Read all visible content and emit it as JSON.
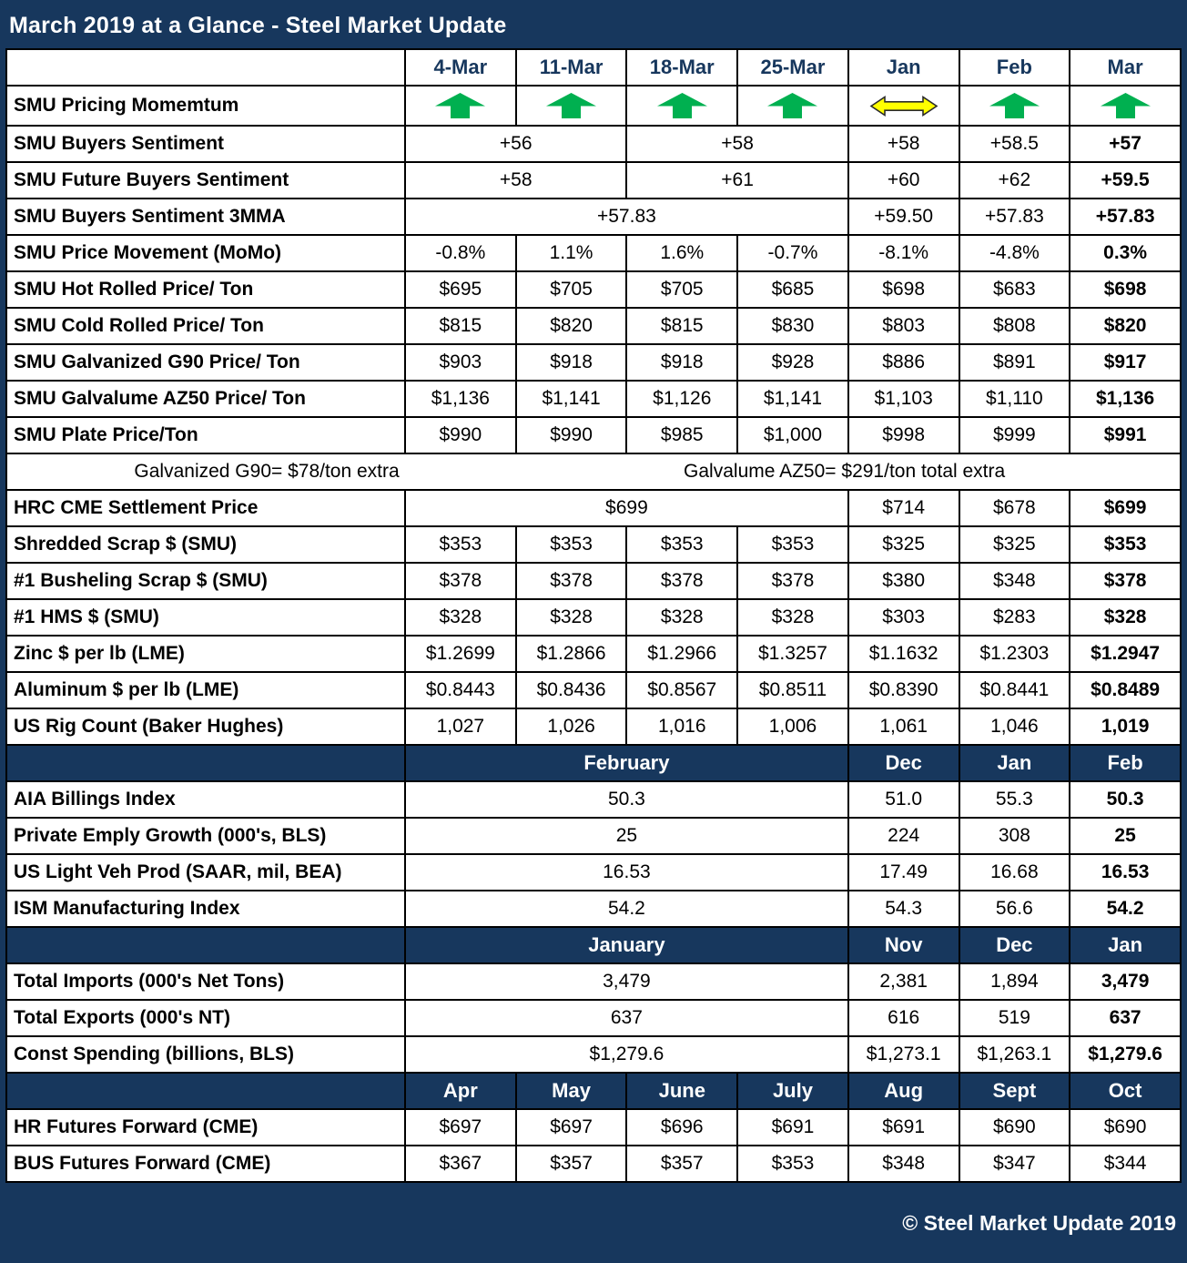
{
  "chart_data": {
    "type": "table",
    "title": "March 2019 at a Glance - Steel Market Update",
    "footer": "© Steel Market Update 2019",
    "colors": {
      "navy": "#17375D",
      "arrow_green": "#00B050",
      "arrow_yellow": "#FFFF00",
      "border_black": "#000000"
    },
    "icons": {
      "up-arrow": "green up block arrow (price momentum increasing)",
      "left-right-arrow": "yellow double-headed horizontal arrow (neutral momentum)"
    },
    "columns": [
      "",
      "4-Mar",
      "11-Mar",
      "18-Mar",
      "25-Mar",
      "Jan",
      "Feb",
      "Mar"
    ],
    "rows": [
      {
        "kind": "icons",
        "label": "SMU Pricing Momemtum",
        "cells": [
          {
            "icon": "up-arrow"
          },
          {
            "icon": "up-arrow"
          },
          {
            "icon": "up-arrow"
          },
          {
            "icon": "up-arrow"
          },
          {
            "icon": "left-right-arrow"
          },
          {
            "icon": "up-arrow"
          },
          {
            "icon": "up-arrow"
          }
        ]
      },
      {
        "kind": "data",
        "label": "SMU Buyers Sentiment",
        "cells": [
          {
            "text": "+56",
            "span": 2
          },
          {
            "text": "+58",
            "span": 2
          },
          {
            "text": "+58"
          },
          {
            "text": "+58.5"
          },
          {
            "text": "+57",
            "bold": true
          }
        ]
      },
      {
        "kind": "data",
        "label": "SMU Future Buyers Sentiment",
        "cells": [
          {
            "text": "+58",
            "span": 2
          },
          {
            "text": "+61",
            "span": 2
          },
          {
            "text": "+60"
          },
          {
            "text": "+62"
          },
          {
            "text": "+59.5",
            "bold": true
          }
        ]
      },
      {
        "kind": "data",
        "label": "SMU Buyers Sentiment 3MMA",
        "cells": [
          {
            "text": "+57.83",
            "span": 4
          },
          {
            "text": "+59.50"
          },
          {
            "text": "+57.83"
          },
          {
            "text": "+57.83",
            "bold": true
          }
        ]
      },
      {
        "kind": "data",
        "label": "SMU Price Movement (MoMo)",
        "cells": [
          {
            "text": "-0.8%"
          },
          {
            "text": "1.1%"
          },
          {
            "text": "1.6%"
          },
          {
            "text": "-0.7%"
          },
          {
            "text": "-8.1%"
          },
          {
            "text": "-4.8%"
          },
          {
            "text": "0.3%",
            "bold": true
          }
        ]
      },
      {
        "kind": "data",
        "label": "SMU Hot Rolled Price/ Ton",
        "cells": [
          {
            "text": "$695"
          },
          {
            "text": "$705"
          },
          {
            "text": "$705"
          },
          {
            "text": "$685"
          },
          {
            "text": "$698"
          },
          {
            "text": "$683"
          },
          {
            "text": "$698",
            "bold": true
          }
        ]
      },
      {
        "kind": "data",
        "label": "SMU Cold Rolled Price/ Ton",
        "cells": [
          {
            "text": "$815"
          },
          {
            "text": "$820"
          },
          {
            "text": "$815"
          },
          {
            "text": "$830"
          },
          {
            "text": "$803"
          },
          {
            "text": "$808"
          },
          {
            "text": "$820",
            "bold": true
          }
        ]
      },
      {
        "kind": "data",
        "label": "SMU Galvanized G90 Price/ Ton",
        "cells": [
          {
            "text": "$903"
          },
          {
            "text": "$918"
          },
          {
            "text": "$918"
          },
          {
            "text": "$928"
          },
          {
            "text": "$886"
          },
          {
            "text": "$891"
          },
          {
            "text": "$917",
            "bold": true
          }
        ]
      },
      {
        "kind": "data",
        "label": "SMU Galvalume AZ50 Price/ Ton",
        "cells": [
          {
            "text": "$1,136"
          },
          {
            "text": "$1,141"
          },
          {
            "text": "$1,126"
          },
          {
            "text": "$1,141"
          },
          {
            "text": "$1,103"
          },
          {
            "text": "$1,110"
          },
          {
            "text": "$1,136",
            "bold": true
          }
        ]
      },
      {
        "kind": "data",
        "label": "SMU Plate Price/Ton",
        "cells": [
          {
            "text": "$990"
          },
          {
            "text": "$990"
          },
          {
            "text": "$985"
          },
          {
            "text": "$1,000"
          },
          {
            "text": "$998"
          },
          {
            "text": "$999"
          },
          {
            "text": "$991",
            "bold": true
          }
        ]
      },
      {
        "kind": "note",
        "texts": [
          "Galvanized G90= $78/ton extra",
          "Galvalume AZ50= $291/ton total extra"
        ]
      },
      {
        "kind": "data",
        "label": "HRC CME Settlement Price",
        "cells": [
          {
            "text": "$699",
            "span": 4
          },
          {
            "text": "$714"
          },
          {
            "text": "$678"
          },
          {
            "text": "$699",
            "bold": true
          }
        ]
      },
      {
        "kind": "data",
        "label": "Shredded Scrap $ (SMU)",
        "cells": [
          {
            "text": "$353"
          },
          {
            "text": "$353"
          },
          {
            "text": "$353"
          },
          {
            "text": "$353"
          },
          {
            "text": "$325"
          },
          {
            "text": "$325"
          },
          {
            "text": "$353",
            "bold": true
          }
        ]
      },
      {
        "kind": "data",
        "label": "#1 Busheling Scrap $ (SMU)",
        "cells": [
          {
            "text": "$378"
          },
          {
            "text": "$378"
          },
          {
            "text": "$378"
          },
          {
            "text": "$378"
          },
          {
            "text": "$380"
          },
          {
            "text": "$348"
          },
          {
            "text": "$378",
            "bold": true
          }
        ]
      },
      {
        "kind": "data",
        "label": "#1 HMS $ (SMU)",
        "cells": [
          {
            "text": "$328"
          },
          {
            "text": "$328"
          },
          {
            "text": "$328"
          },
          {
            "text": "$328"
          },
          {
            "text": "$303"
          },
          {
            "text": "$283"
          },
          {
            "text": "$328",
            "bold": true
          }
        ]
      },
      {
        "kind": "data",
        "label": "Zinc $ per lb (LME)",
        "cells": [
          {
            "text": "$1.2699"
          },
          {
            "text": "$1.2866"
          },
          {
            "text": "$1.2966"
          },
          {
            "text": "$1.3257"
          },
          {
            "text": "$1.1632"
          },
          {
            "text": "$1.2303"
          },
          {
            "text": "$1.2947",
            "bold": true
          }
        ]
      },
      {
        "kind": "data",
        "label": "Aluminum $ per lb (LME)",
        "cells": [
          {
            "text": "$0.8443"
          },
          {
            "text": "$0.8436"
          },
          {
            "text": "$0.8567"
          },
          {
            "text": "$0.8511"
          },
          {
            "text": "$0.8390"
          },
          {
            "text": "$0.8441"
          },
          {
            "text": "$0.8489",
            "bold": true
          }
        ]
      },
      {
        "kind": "data",
        "label": "US Rig Count (Baker Hughes)",
        "cells": [
          {
            "text": "1,027"
          },
          {
            "text": "1,026"
          },
          {
            "text": "1,016"
          },
          {
            "text": "1,006"
          },
          {
            "text": "1,061"
          },
          {
            "text": "1,046"
          },
          {
            "text": "1,019",
            "bold": true
          }
        ]
      },
      {
        "kind": "subheader",
        "label": "",
        "cells": [
          {
            "text": "February",
            "span": 4
          },
          {
            "text": "Dec"
          },
          {
            "text": "Jan"
          },
          {
            "text": "Feb"
          }
        ]
      },
      {
        "kind": "data",
        "label": "AIA Billings Index",
        "cells": [
          {
            "text": "50.3",
            "span": 4
          },
          {
            "text": "51.0"
          },
          {
            "text": "55.3"
          },
          {
            "text": "50.3",
            "bold": true
          }
        ]
      },
      {
        "kind": "data",
        "label": "Private Emply Growth (000's, BLS)",
        "cells": [
          {
            "text": "25",
            "span": 4
          },
          {
            "text": "224"
          },
          {
            "text": "308"
          },
          {
            "text": "25",
            "bold": true
          }
        ]
      },
      {
        "kind": "data",
        "label": "US Light Veh Prod (SAAR, mil, BEA)",
        "cells": [
          {
            "text": "16.53",
            "span": 4
          },
          {
            "text": "17.49"
          },
          {
            "text": "16.68"
          },
          {
            "text": "16.53",
            "bold": true
          }
        ]
      },
      {
        "kind": "data",
        "label": "ISM Manufacturing Index",
        "cells": [
          {
            "text": "54.2",
            "span": 4
          },
          {
            "text": "54.3"
          },
          {
            "text": "56.6"
          },
          {
            "text": "54.2",
            "bold": true
          }
        ]
      },
      {
        "kind": "subheader",
        "label": "",
        "cells": [
          {
            "text": "January",
            "span": 4
          },
          {
            "text": "Nov"
          },
          {
            "text": "Dec"
          },
          {
            "text": "Jan"
          }
        ]
      },
      {
        "kind": "data",
        "label": "Total Imports (000's Net Tons)",
        "cells": [
          {
            "text": "3,479",
            "span": 4
          },
          {
            "text": "2,381"
          },
          {
            "text": "1,894"
          },
          {
            "text": "3,479",
            "bold": true
          }
        ]
      },
      {
        "kind": "data",
        "label": "Total Exports (000's NT)",
        "cells": [
          {
            "text": "637",
            "span": 4
          },
          {
            "text": "616"
          },
          {
            "text": "519"
          },
          {
            "text": "637",
            "bold": true
          }
        ]
      },
      {
        "kind": "data",
        "label": "Const Spending (billions, BLS)",
        "cells": [
          {
            "text": "$1,279.6",
            "span": 4
          },
          {
            "text": "$1,273.1"
          },
          {
            "text": "$1,263.1"
          },
          {
            "text": "$1,279.6",
            "bold": true
          }
        ]
      },
      {
        "kind": "subheader",
        "label": "",
        "cells": [
          {
            "text": "Apr"
          },
          {
            "text": "May"
          },
          {
            "text": "June"
          },
          {
            "text": "July"
          },
          {
            "text": "Aug"
          },
          {
            "text": "Sept"
          },
          {
            "text": "Oct"
          }
        ]
      },
      {
        "kind": "data",
        "label": "HR Futures Forward (CME)",
        "cells": [
          {
            "text": "$697"
          },
          {
            "text": "$697"
          },
          {
            "text": "$696"
          },
          {
            "text": "$691"
          },
          {
            "text": "$691"
          },
          {
            "text": "$690"
          },
          {
            "text": "$690"
          }
        ]
      },
      {
        "kind": "data",
        "label": "BUS Futures Forward (CME)",
        "cells": [
          {
            "text": "$367"
          },
          {
            "text": "$357"
          },
          {
            "text": "$357"
          },
          {
            "text": "$353"
          },
          {
            "text": "$348"
          },
          {
            "text": "$347"
          },
          {
            "text": "$344"
          }
        ]
      }
    ]
  }
}
